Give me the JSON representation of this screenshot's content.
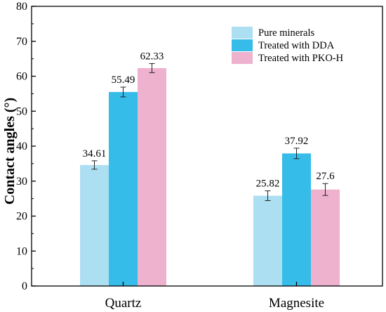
{
  "chart_data": {
    "type": "bar",
    "title": "",
    "xlabel": "",
    "ylabel": "Contact angles (°)",
    "ylim": [
      0,
      80
    ],
    "yticks": [
      0,
      10,
      20,
      30,
      40,
      50,
      60,
      70,
      80
    ],
    "categories": [
      "Quartz",
      "Magnesite"
    ],
    "series": [
      {
        "name": "Pure minerals",
        "values": [
          34.61,
          25.82
        ],
        "errors": [
          1.2,
          1.4
        ],
        "labels": [
          "34.61",
          "25.82"
        ],
        "color": "#ADDFF2"
      },
      {
        "name": "Treated with DDA",
        "values": [
          55.49,
          37.92
        ],
        "errors": [
          1.4,
          1.5
        ],
        "labels": [
          "55.49",
          "37.92"
        ],
        "color": "#35BCE8"
      },
      {
        "name": "Treated with PKO-H",
        "values": [
          62.33,
          27.6
        ],
        "errors": [
          1.3,
          1.7
        ],
        "labels": [
          "62.33",
          "27.6"
        ],
        "color": "#EEB2CE"
      }
    ],
    "legend": "top-right",
    "grid": false
  }
}
